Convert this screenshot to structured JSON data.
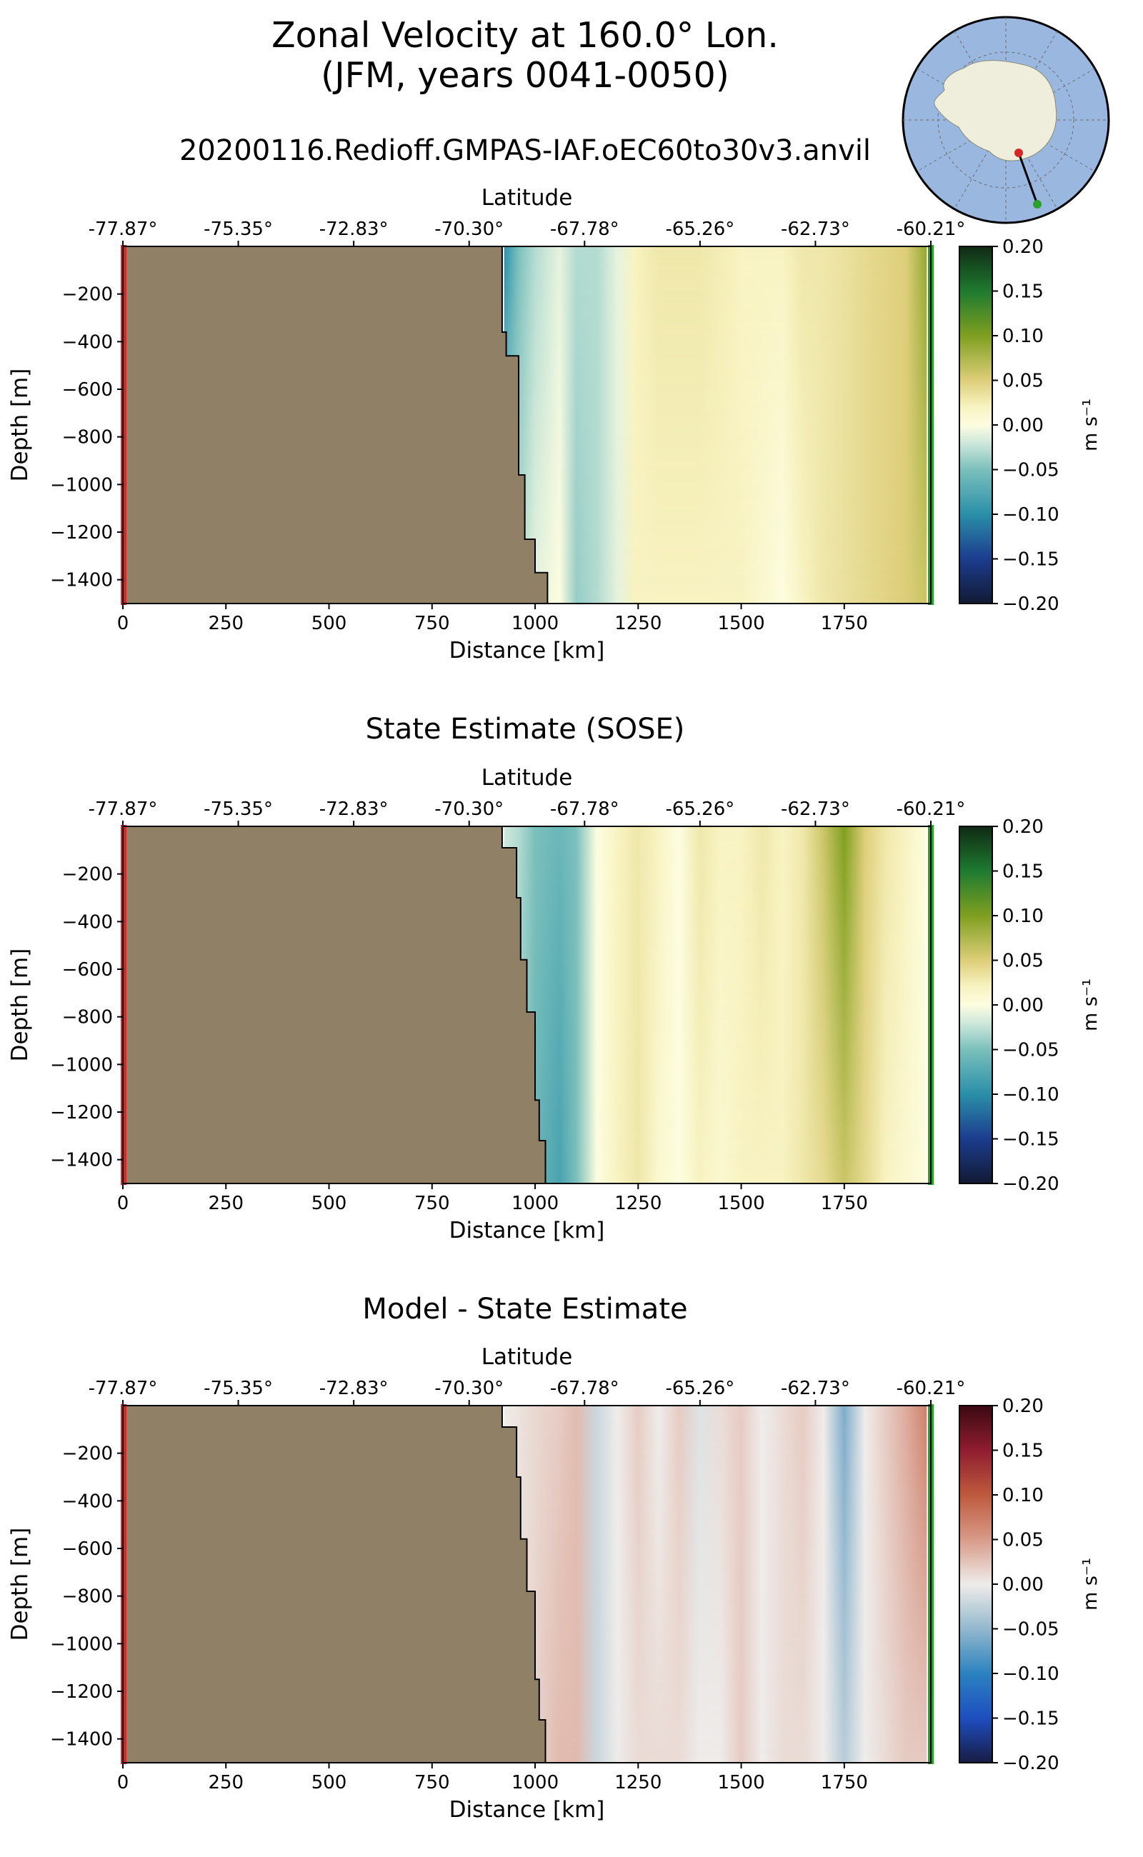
{
  "title_line1": "Zonal Velocity at 160.0° Lon.",
  "title_line2": "(JFM, years 0041-0050)",
  "subtitle": "20200116.Redioff.GMPAS-IAF.oEC60to30v3.anvil",
  "panel_titles": [
    "",
    "State Estimate (SOSE)",
    "Model - State Estimate"
  ],
  "colors": {
    "land": "#8f8066",
    "start_marker": "#d62728",
    "end_marker": "#2ca02c",
    "ocean_map": "#9ab7e0",
    "antarctica_map": "#efeedc"
  },
  "chart_data": [
    {
      "type": "heatmap",
      "title": "",
      "xlabel": "Distance [km]",
      "ylabel": "Depth [m]",
      "secondary_xlabel": "Latitude",
      "xlim": [
        0,
        1960
      ],
      "ylim": [
        -1500,
        0
      ],
      "x_ticks": [
        0,
        250,
        500,
        750,
        1000,
        1250,
        1500,
        1750
      ],
      "x_tick_labels": [
        "0",
        "250",
        "500",
        "750",
        "1000",
        "1250",
        "1500",
        "1750"
      ],
      "y_ticks": [
        -200,
        -400,
        -600,
        -800,
        -1000,
        -1200,
        -1400
      ],
      "y_tick_labels": [
        "−200",
        "−400",
        "−600",
        "−800",
        "−1000",
        "−1200",
        "−1400"
      ],
      "lat_ticks": [
        0,
        280,
        560,
        840,
        1120,
        1400,
        1680,
        1960
      ],
      "lat_tick_labels": [
        "-77.87°",
        "-75.35°",
        "-72.83°",
        "-70.30°",
        "-67.78°",
        "-65.26°",
        "-62.73°",
        "-60.21°"
      ],
      "colorbar": {
        "label": "m s⁻¹",
        "range": [
          -0.2,
          0.2
        ],
        "ticks": [
          "0.20",
          "0.15",
          "0.10",
          "0.05",
          "0.00",
          "−0.05",
          "−0.10",
          "−0.15",
          "−0.20"
        ],
        "cmap": "delta"
      },
      "land_boundary": [
        [
          920,
          0
        ],
        [
          920,
          -360
        ],
        [
          930,
          -360
        ],
        [
          930,
          -460
        ],
        [
          960,
          -460
        ],
        [
          960,
          -960
        ],
        [
          975,
          -960
        ],
        [
          975,
          -1230
        ],
        [
          1000,
          -1230
        ],
        [
          1000,
          -1370
        ],
        [
          1030,
          -1370
        ],
        [
          1030,
          -1500
        ]
      ],
      "velocity_profile": {
        "x": [
          925,
          960,
          1000,
          1060,
          1100,
          1150,
          1200,
          1240,
          1300,
          1400,
          1500,
          1600,
          1650,
          1700,
          1800,
          1900,
          1950
        ],
        "surface": [
          -0.1,
          -0.05,
          -0.03,
          -0.01,
          -0.03,
          -0.03,
          -0.01,
          0.02,
          0.03,
          0.03,
          0.02,
          0.02,
          0.03,
          0.03,
          0.04,
          0.05,
          0.09
        ],
        "bottom": [
          -0.02,
          -0.03,
          -0.01,
          0.0,
          -0.04,
          -0.03,
          -0.01,
          0.02,
          0.02,
          0.02,
          0.02,
          0.0,
          0.02,
          0.03,
          0.04,
          0.05,
          0.06
        ]
      }
    },
    {
      "type": "heatmap",
      "title": "State Estimate (SOSE)",
      "xlabel": "Distance [km]",
      "ylabel": "Depth [m]",
      "secondary_xlabel": "Latitude",
      "xlim": [
        0,
        1960
      ],
      "ylim": [
        -1500,
        0
      ],
      "x_ticks": [
        0,
        250,
        500,
        750,
        1000,
        1250,
        1500,
        1750
      ],
      "x_tick_labels": [
        "0",
        "250",
        "500",
        "750",
        "1000",
        "1250",
        "1500",
        "1750"
      ],
      "y_ticks": [
        -200,
        -400,
        -600,
        -800,
        -1000,
        -1200,
        -1400
      ],
      "y_tick_labels": [
        "−200",
        "−400",
        "−600",
        "−800",
        "−1000",
        "−1200",
        "−1400"
      ],
      "lat_ticks": [
        0,
        280,
        560,
        840,
        1120,
        1400,
        1680,
        1960
      ],
      "lat_tick_labels": [
        "-77.87°",
        "-75.35°",
        "-72.83°",
        "-70.30°",
        "-67.78°",
        "-65.26°",
        "-62.73°",
        "-60.21°"
      ],
      "colorbar": {
        "label": "m s⁻¹",
        "range": [
          -0.2,
          0.2
        ],
        "ticks": [
          "0.20",
          "0.15",
          "0.10",
          "0.05",
          "0.00",
          "−0.05",
          "−0.10",
          "−0.15",
          "−0.20"
        ],
        "cmap": "delta"
      },
      "land_boundary": [
        [
          920,
          0
        ],
        [
          920,
          -90
        ],
        [
          955,
          -90
        ],
        [
          955,
          -300
        ],
        [
          965,
          -300
        ],
        [
          965,
          -560
        ],
        [
          980,
          -560
        ],
        [
          980,
          -780
        ],
        [
          1000,
          -780
        ],
        [
          1000,
          -1150
        ],
        [
          1010,
          -1150
        ],
        [
          1010,
          -1320
        ],
        [
          1025,
          -1320
        ],
        [
          1025,
          -1500
        ]
      ],
      "velocity_profile": {
        "x": [
          925,
          960,
          1000,
          1060,
          1100,
          1150,
          1200,
          1250,
          1300,
          1350,
          1400,
          1450,
          1500,
          1550,
          1600,
          1650,
          1700,
          1750,
          1800,
          1850,
          1900,
          1950
        ],
        "surface": [
          -0.02,
          -0.03,
          -0.05,
          -0.06,
          -0.05,
          0.0,
          0.02,
          0.03,
          0.02,
          0.0,
          0.03,
          0.02,
          0.02,
          0.03,
          0.02,
          0.03,
          0.06,
          0.1,
          0.05,
          0.03,
          0.02,
          0.0
        ],
        "bottom": [
          -0.03,
          -0.04,
          -0.06,
          -0.08,
          -0.05,
          0.0,
          0.02,
          0.03,
          0.01,
          0.0,
          0.02,
          0.01,
          0.02,
          0.02,
          0.02,
          0.03,
          0.04,
          0.06,
          0.04,
          0.02,
          0.01,
          0.0
        ]
      }
    },
    {
      "type": "heatmap",
      "title": "Model - State Estimate",
      "xlabel": "Distance [km]",
      "ylabel": "Depth [m]",
      "secondary_xlabel": "Latitude",
      "xlim": [
        0,
        1960
      ],
      "ylim": [
        -1500,
        0
      ],
      "x_ticks": [
        0,
        250,
        500,
        750,
        1000,
        1250,
        1500,
        1750
      ],
      "x_tick_labels": [
        "0",
        "250",
        "500",
        "750",
        "1000",
        "1250",
        "1500",
        "1750"
      ],
      "y_ticks": [
        -200,
        -400,
        -600,
        -800,
        -1000,
        -1200,
        -1400
      ],
      "y_tick_labels": [
        "−200",
        "−400",
        "−600",
        "−800",
        "−1000",
        "−1200",
        "−1400"
      ],
      "lat_ticks": [
        0,
        280,
        560,
        840,
        1120,
        1400,
        1680,
        1960
      ],
      "lat_tick_labels": [
        "-77.87°",
        "-75.35°",
        "-72.83°",
        "-70.30°",
        "-67.78°",
        "-65.26°",
        "-62.73°",
        "-60.21°"
      ],
      "colorbar": {
        "label": "m s⁻¹",
        "range": [
          -0.2,
          0.2
        ],
        "ticks": [
          "0.20",
          "0.15",
          "0.10",
          "0.05",
          "0.00",
          "−0.05",
          "−0.10",
          "−0.15",
          "−0.20"
        ],
        "cmap": "balance"
      },
      "land_boundary": [
        [
          920,
          0
        ],
        [
          920,
          -90
        ],
        [
          955,
          -90
        ],
        [
          955,
          -300
        ],
        [
          965,
          -300
        ],
        [
          965,
          -560
        ],
        [
          980,
          -560
        ],
        [
          980,
          -780
        ],
        [
          1000,
          -780
        ],
        [
          1000,
          -1150
        ],
        [
          1010,
          -1150
        ],
        [
          1010,
          -1320
        ],
        [
          1025,
          -1320
        ],
        [
          1025,
          -1500
        ]
      ],
      "velocity_profile": {
        "x": [
          925,
          980,
          1060,
          1100,
          1150,
          1200,
          1250,
          1300,
          1350,
          1400,
          1450,
          1500,
          1550,
          1600,
          1650,
          1700,
          1750,
          1800,
          1850,
          1900,
          1950
        ],
        "surface": [
          0.0,
          0.01,
          0.02,
          0.03,
          -0.02,
          0.0,
          0.02,
          0.0,
          0.02,
          -0.01,
          0.01,
          0.02,
          0.0,
          0.01,
          0.02,
          0.0,
          -0.06,
          0.0,
          0.02,
          0.04,
          0.07
        ],
        "bottom": [
          0.0,
          0.01,
          0.03,
          0.03,
          -0.02,
          0.0,
          0.01,
          0.01,
          0.01,
          0.0,
          0.0,
          0.02,
          0.0,
          0.01,
          0.01,
          0.0,
          -0.03,
          0.0,
          0.01,
          0.02,
          0.02
        ]
      }
    }
  ]
}
